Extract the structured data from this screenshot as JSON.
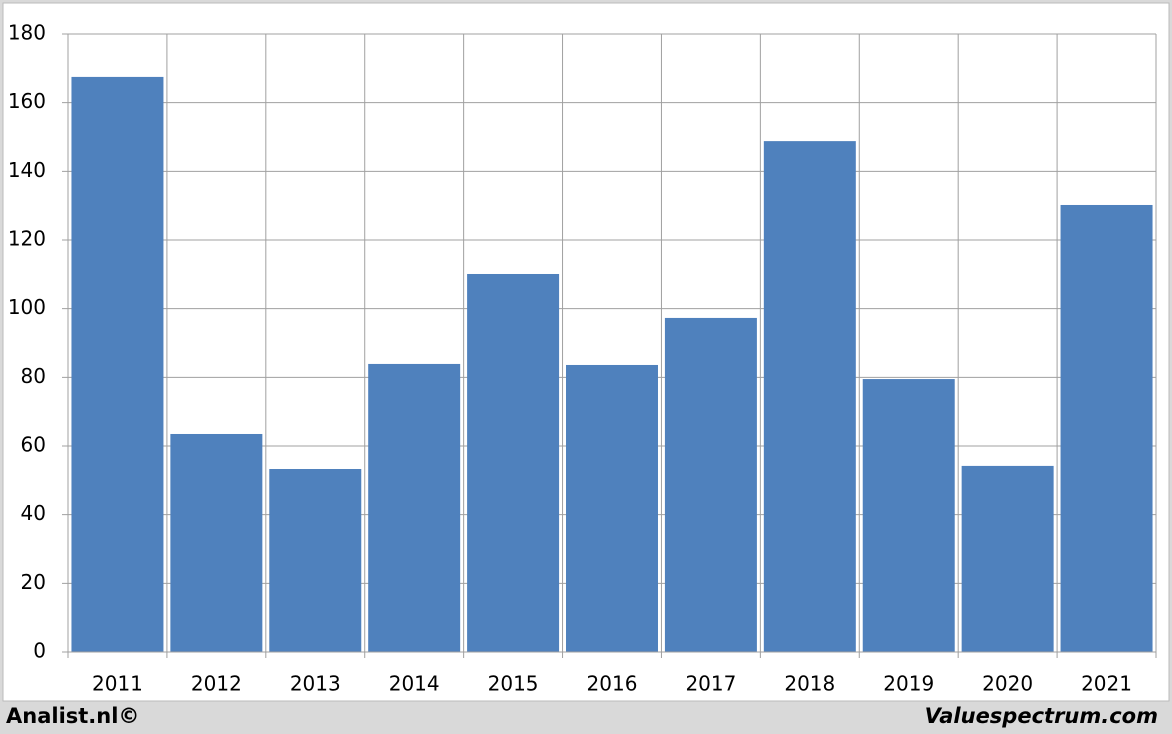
{
  "chart_data": {
    "type": "bar",
    "categories": [
      "2011",
      "2012",
      "2013",
      "2014",
      "2015",
      "2016",
      "2017",
      "2018",
      "2019",
      "2020",
      "2021"
    ],
    "values": [
      167.5,
      63.5,
      53.3,
      83.9,
      110.1,
      83.6,
      97.3,
      148.8,
      79.5,
      54.2,
      130.2
    ],
    "color": "#4f81bd",
    "ylim": [
      0,
      180
    ],
    "yticks": [
      0,
      20,
      40,
      60,
      80,
      100,
      120,
      140,
      160,
      180
    ],
    "grid": true
  },
  "footer": {
    "left": "Analist.nl©",
    "right": "Valuespectrum.com"
  }
}
